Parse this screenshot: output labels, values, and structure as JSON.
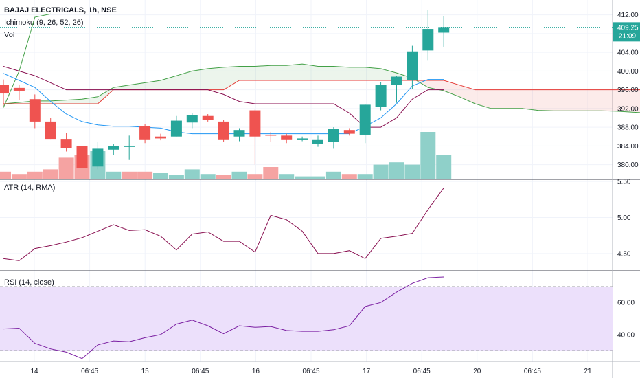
{
  "header": {
    "title": "BAJAJ ELECTRICALS, 1h, NSE",
    "ichimoku_label": "Ichimoku (9, 26, 52, 26)",
    "volume_label": "Vol",
    "atr_label": "ATR (14, RMA)",
    "rsi_label": "RSI (14, close)"
  },
  "price_badge": {
    "value": "409.25",
    "countdown": "21:09",
    "color": "#26a69a"
  },
  "colors": {
    "up": "#26a69a",
    "down": "#ef5350",
    "vol_up": "#8fd0c9",
    "vol_down": "#f5a3a2",
    "tenkan": "#2196f3",
    "kijun": "#880e4f",
    "lagging": "#43a047",
    "span_a": "#43a047",
    "span_b": "#e53935",
    "atr": "#880e4f",
    "rsi": "#7b1fa2",
    "rsi_band": "#ece0fb"
  },
  "chart_data": [
    {
      "type": "candlestick",
      "title": "BAJAJ ELECTRICALS, 1h, NSE",
      "price_axis_ticks": [
        "412.00",
        "408.00",
        "404.00",
        "400.00",
        "396.00",
        "392.00",
        "388.00",
        "384.00",
        "380.00"
      ],
      "time_axis_ticks": [
        "14",
        "06:45",
        "15",
        "06:45",
        "16",
        "06:45",
        "17",
        "06:45",
        "20",
        "06:45",
        "21"
      ],
      "ohlc": [
        {
          "o": 397.0,
          "h": 398.2,
          "l": 392.6,
          "c": 395.2
        },
        {
          "o": 396.4,
          "h": 397.0,
          "l": 393.8,
          "c": 395.8
        },
        {
          "o": 394.0,
          "h": 395.0,
          "l": 387.8,
          "c": 389.2
        },
        {
          "o": 389.2,
          "h": 390.0,
          "l": 385.5,
          "c": 385.5
        },
        {
          "o": 385.5,
          "h": 386.8,
          "l": 382.8,
          "c": 383.5
        },
        {
          "o": 384.0,
          "h": 384.8,
          "l": 379.0,
          "c": 379.2
        },
        {
          "o": 379.6,
          "h": 384.8,
          "l": 379.0,
          "c": 383.4
        },
        {
          "o": 383.2,
          "h": 384.4,
          "l": 382.0,
          "c": 384.0
        },
        {
          "o": 384.0,
          "h": 386.2,
          "l": 381.0,
          "c": 384.0
        },
        {
          "o": 388.2,
          "h": 388.6,
          "l": 384.6,
          "c": 385.4
        },
        {
          "o": 386.0,
          "h": 386.6,
          "l": 385.2,
          "c": 385.6
        },
        {
          "o": 386.0,
          "h": 390.4,
          "l": 386.0,
          "c": 389.4
        },
        {
          "o": 389.0,
          "h": 391.0,
          "l": 387.8,
          "c": 390.6
        },
        {
          "o": 390.4,
          "h": 390.8,
          "l": 389.2,
          "c": 389.6
        },
        {
          "o": 389.2,
          "h": 389.5,
          "l": 384.8,
          "c": 385.4
        },
        {
          "o": 386.0,
          "h": 387.8,
          "l": 385.0,
          "c": 387.4
        },
        {
          "o": 391.6,
          "h": 391.8,
          "l": 380.0,
          "c": 386.0
        },
        {
          "o": 386.4,
          "h": 387.0,
          "l": 384.8,
          "c": 386.2
        },
        {
          "o": 386.2,
          "h": 386.6,
          "l": 384.6,
          "c": 385.4
        },
        {
          "o": 385.4,
          "h": 386.0,
          "l": 385.0,
          "c": 385.6
        },
        {
          "o": 384.4,
          "h": 386.2,
          "l": 383.8,
          "c": 385.4
        },
        {
          "o": 384.8,
          "h": 388.0,
          "l": 383.4,
          "c": 387.6
        },
        {
          "o": 387.4,
          "h": 387.8,
          "l": 386.2,
          "c": 386.6
        },
        {
          "o": 386.4,
          "h": 393.0,
          "l": 384.6,
          "c": 392.8
        },
        {
          "o": 392.4,
          "h": 397.6,
          "l": 391.6,
          "c": 397.0
        },
        {
          "o": 397.0,
          "h": 399.0,
          "l": 393.2,
          "c": 398.8
        },
        {
          "o": 398.0,
          "h": 405.4,
          "l": 396.2,
          "c": 404.2
        },
        {
          "o": 404.4,
          "h": 413.0,
          "l": 402.2,
          "c": 409.0
        },
        {
          "o": 408.2,
          "h": 411.8,
          "l": 405.2,
          "c": 409.25
        }
      ],
      "volume_up": [
        false,
        false,
        false,
        false,
        false,
        false,
        true,
        true,
        false,
        false,
        true,
        true,
        true,
        true,
        false,
        true,
        false,
        false,
        true,
        true,
        true,
        true,
        false,
        true,
        true,
        true,
        true,
        true,
        true
      ],
      "volume_rel": [
        0.15,
        0.1,
        0.15,
        0.2,
        0.45,
        0.5,
        0.6,
        0.15,
        0.15,
        0.15,
        0.13,
        0.08,
        0.2,
        0.1,
        0.08,
        0.15,
        0.1,
        0.25,
        0.1,
        0.05,
        0.05,
        0.15,
        0.1,
        0.1,
        0.3,
        0.35,
        0.3,
        1.0,
        0.5
      ],
      "tenkan": [
        399.5,
        398.0,
        396.5,
        393.5,
        390.8,
        389.2,
        388.5,
        388.2,
        388.2,
        388.0,
        387.8,
        387.0,
        386.6,
        386.6,
        386.6,
        386.6,
        386.6,
        386.6,
        386.6,
        386.6,
        386.6,
        386.6,
        386.6,
        388.2,
        390.0,
        393.0,
        396.8,
        398.2,
        398.2
      ],
      "kijun": [
        401.0,
        400.0,
        399.0,
        397.5,
        396.0,
        396.0,
        396.0,
        396.0,
        396.0,
        396.0,
        396.0,
        396.0,
        396.0,
        396.0,
        395.0,
        393.5,
        393.0,
        393.0,
        393.0,
        393.0,
        393.0,
        393.0,
        391.0,
        388.0,
        388.0,
        390.0,
        394.0,
        396.0,
        396.0
      ],
      "lagging": [
        392.2,
        400.0,
        411.5,
        412.2
      ],
      "span_a": [
        393.0,
        393.3,
        393.6,
        393.6,
        393.8,
        394.0,
        394.5,
        396.5,
        397.0,
        397.5,
        398.0,
        399.0,
        400.0,
        400.5,
        400.8,
        401.0,
        401.0,
        401.2,
        401.2,
        401.5,
        401.0,
        401.0,
        400.8,
        400.8,
        400.5,
        399.6,
        398.5,
        396.5,
        395.8,
        394.5,
        393.0,
        392.0,
        392.0,
        392.0,
        391.6,
        391.5,
        391.5,
        391.5,
        391.5,
        391.4,
        391.2,
        391.0,
        391.0
      ],
      "span_b": [
        393.0,
        393.0,
        393.0,
        393.0,
        393.0,
        393.0,
        393.0,
        396.0,
        396.0,
        396.0,
        396.0,
        396.0,
        396.0,
        396.0,
        396.0,
        398.0,
        398.0,
        398.0,
        398.0,
        398.0,
        398.0,
        398.0,
        398.0,
        398.0,
        398.0,
        398.0,
        398.0,
        398.0,
        398.0,
        397.0,
        396.0,
        396.0,
        396.0,
        396.0,
        396.0,
        396.0,
        396.0,
        396.0,
        396.0,
        396.0,
        396.0,
        396.0,
        396.0
      ],
      "current_price": 409.25,
      "ylim": [
        377,
        414
      ]
    },
    {
      "type": "line",
      "title": "ATR (14, RMA)",
      "ticks": [
        "5.50",
        "5.00",
        "4.50"
      ],
      "values": [
        4.43,
        4.4,
        4.57,
        4.61,
        4.66,
        4.72,
        4.81,
        4.9,
        4.82,
        4.83,
        4.74,
        4.55,
        4.77,
        4.8,
        4.67,
        4.67,
        4.52,
        5.03,
        4.97,
        4.81,
        4.5,
        4.5,
        4.54,
        4.43,
        4.71,
        4.74,
        4.78,
        5.11,
        5.41
      ],
      "ylim": [
        4.28,
        5.52
      ]
    },
    {
      "type": "line",
      "title": "RSI (14, close)",
      "ticks": [
        "60.00",
        "40.00"
      ],
      "values": [
        43.5,
        44.0,
        34.5,
        31.0,
        29.0,
        25.0,
        33.5,
        36.0,
        35.5,
        38.0,
        40.0,
        46.5,
        49.0,
        45.5,
        40.5,
        45.5,
        44.5,
        45.0,
        42.5,
        42.0,
        42.0,
        43.0,
        45.5,
        57.5,
        60.0,
        66.5,
        72.0,
        75.5,
        76.0
      ],
      "band": [
        30,
        70
      ],
      "ylim": [
        24,
        79
      ]
    }
  ]
}
